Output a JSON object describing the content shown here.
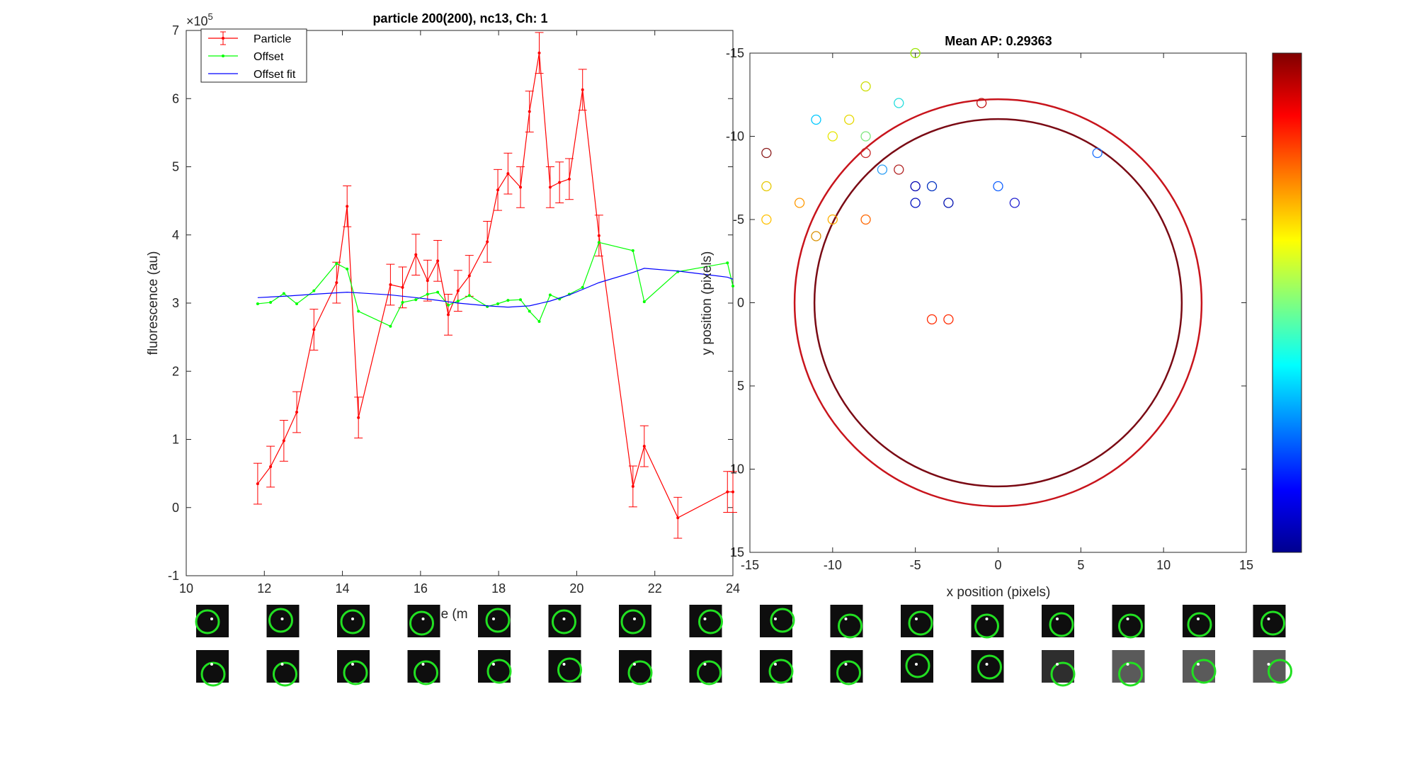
{
  "figure": {
    "left_chart": {
      "title": "particle 200(200), nc13, Ch: 1",
      "ylabel": "fluorescence (au)",
      "xlabel_visible": "ne (m",
      "y_exponent_label": "×10",
      "y_exponent_power": "5",
      "legend": [
        "Particle",
        "Offset",
        "Offset fit"
      ]
    },
    "right_chart": {
      "title": "Mean AP: 0.29363",
      "xlabel": "x position (pixels)",
      "ylabel": "y position (pixels)"
    }
  },
  "chart_data": [
    {
      "type": "line",
      "title": "particle 200(200), nc13, Ch: 1",
      "xlabel": "",
      "ylabel": "fluorescence (au)",
      "xlim": [
        10,
        24
      ],
      "ylim": [
        -1,
        7
      ],
      "y_scale_note": "×10^5",
      "x_ticks": [
        "10",
        "12",
        "14",
        "16",
        "18",
        "20",
        "22",
        "24"
      ],
      "y_ticks": [
        "-1",
        "0",
        "1",
        "2",
        "3",
        "4",
        "5",
        "6",
        "7"
      ],
      "grid": false,
      "legend_position": "top-left",
      "series": [
        {
          "name": "Particle",
          "color": "#ff0000",
          "x": [
            11.83,
            12.16,
            12.5,
            12.83,
            13.27,
            13.85,
            14.12,
            14.41,
            15.23,
            15.54,
            15.88,
            16.18,
            16.44,
            16.71,
            16.96,
            17.25,
            17.71,
            17.98,
            18.24,
            18.56,
            18.79,
            19.04,
            19.32,
            19.56,
            19.81,
            20.15,
            20.57,
            21.44,
            21.73,
            22.59,
            23.86,
            24.0
          ],
          "y": [
            0.35,
            0.6,
            0.98,
            1.4,
            2.61,
            3.3,
            4.42,
            1.32,
            3.27,
            3.23,
            3.71,
            3.33,
            3.62,
            2.83,
            3.18,
            3.4,
            3.9,
            4.66,
            4.9,
            4.7,
            5.81,
            6.67,
            4.7,
            4.77,
            4.82,
            6.13,
            3.99,
            0.31,
            0.9,
            -0.15,
            0.23,
            0.23
          ],
          "err": [
            0.3,
            0.3,
            0.3,
            0.3,
            0.3,
            0.3,
            0.3,
            0.3,
            0.3,
            0.3,
            0.3,
            0.3,
            0.3,
            0.3,
            0.3,
            0.3,
            0.3,
            0.3,
            0.3,
            0.3,
            0.3,
            0.3,
            0.3,
            0.3,
            0.3,
            0.3,
            0.3,
            0.3,
            0.3,
            0.3,
            0.3,
            0.3
          ]
        },
        {
          "name": "Offset",
          "color": "#00ff00",
          "x": [
            11.83,
            12.16,
            12.5,
            12.83,
            13.27,
            13.85,
            14.12,
            14.41,
            15.23,
            15.54,
            15.88,
            16.18,
            16.44,
            16.71,
            16.96,
            17.25,
            17.71,
            17.98,
            18.24,
            18.56,
            18.79,
            19.04,
            19.32,
            19.56,
            19.81,
            20.15,
            20.57,
            21.44,
            21.73,
            22.59,
            23.86,
            24.0
          ],
          "y": [
            2.99,
            3.01,
            3.14,
            2.99,
            3.18,
            3.58,
            3.5,
            2.88,
            2.66,
            3.01,
            3.05,
            3.13,
            3.16,
            2.97,
            3.03,
            3.11,
            2.95,
            2.99,
            3.04,
            3.05,
            2.88,
            2.73,
            3.12,
            3.06,
            3.13,
            3.23,
            3.89,
            3.77,
            3.02,
            3.46,
            3.59,
            3.25
          ]
        },
        {
          "name": "Offset fit",
          "color": "#0000ff",
          "x": [
            11.83,
            12.5,
            13.27,
            14.12,
            14.41,
            15.23,
            15.88,
            16.44,
            16.96,
            17.71,
            18.24,
            18.79,
            19.32,
            19.81,
            20.15,
            20.57,
            21.44,
            21.73,
            22.59,
            23.86,
            24.0
          ],
          "y": [
            3.08,
            3.1,
            3.13,
            3.16,
            3.15,
            3.12,
            3.08,
            3.04,
            3.0,
            2.96,
            2.94,
            2.96,
            3.03,
            3.12,
            3.2,
            3.3,
            3.45,
            3.51,
            3.47,
            3.38,
            3.35
          ]
        }
      ]
    },
    {
      "type": "scatter",
      "title": "Mean AP: 0.29363",
      "xlabel": "x position (pixels)",
      "ylabel": "y position (pixels)",
      "xlim": [
        -15,
        15
      ],
      "ylim": [
        -15,
        15
      ],
      "y_reversed": true,
      "x_ticks": [
        "-15",
        "-10",
        "-5",
        "0",
        "5",
        "10",
        "15"
      ],
      "y_ticks": [
        "-15",
        "-10",
        "-5",
        "0",
        "5",
        "10",
        "15"
      ],
      "grid": false,
      "colorbar": "jet",
      "circles": [
        {
          "cx": 0,
          "cy": 0,
          "r": 12.3,
          "color": "#c8141c"
        },
        {
          "cx": 0,
          "cy": 0,
          "r": 11.1,
          "color": "#7a0a14"
        }
      ],
      "points": [
        {
          "x": -14,
          "y": -9,
          "color": "#8b1a1a"
        },
        {
          "x": -14,
          "y": -7,
          "color": "#e6c800"
        },
        {
          "x": -14,
          "y": -5,
          "color": "#ffc000"
        },
        {
          "x": -12,
          "y": -6,
          "color": "#ff9900"
        },
        {
          "x": -11,
          "y": -4,
          "color": "#d99000"
        },
        {
          "x": -11,
          "y": -11,
          "color": "#00c8ff"
        },
        {
          "x": -10,
          "y": -10,
          "color": "#e6e600"
        },
        {
          "x": -10,
          "y": -5,
          "color": "#ffb000"
        },
        {
          "x": -9,
          "y": -11,
          "color": "#e6d800"
        },
        {
          "x": -8,
          "y": -13,
          "color": "#ccdd00"
        },
        {
          "x": -8,
          "y": -10,
          "color": "#7ce67c"
        },
        {
          "x": -8,
          "y": -9,
          "color": "#c82828"
        },
        {
          "x": -8,
          "y": -5,
          "color": "#ff6600"
        },
        {
          "x": -7,
          "y": -8,
          "color": "#2a9df4"
        },
        {
          "x": -6,
          "y": -12,
          "color": "#22dddd"
        },
        {
          "x": -6,
          "y": -8,
          "color": "#b22222"
        },
        {
          "x": -5,
          "y": -15,
          "color": "#99e600"
        },
        {
          "x": -5,
          "y": -7,
          "color": "#0000b0"
        },
        {
          "x": -5,
          "y": -6,
          "color": "#0010c0"
        },
        {
          "x": -4,
          "y": -7,
          "color": "#0030c0"
        },
        {
          "x": -4,
          "y": 1,
          "color": "#ff2a00"
        },
        {
          "x": -3,
          "y": -6,
          "color": "#0010b0"
        },
        {
          "x": -3,
          "y": 1,
          "color": "#ff2a00"
        },
        {
          "x": -1,
          "y": -12,
          "color": "#c01010"
        },
        {
          "x": 0,
          "y": -7,
          "color": "#1060ff"
        },
        {
          "x": 1,
          "y": -6,
          "color": "#2020d0"
        },
        {
          "x": 6,
          "y": -9,
          "color": "#1a70ff"
        }
      ]
    }
  ],
  "thumbnails": {
    "rows": 2,
    "columns": 16
  }
}
